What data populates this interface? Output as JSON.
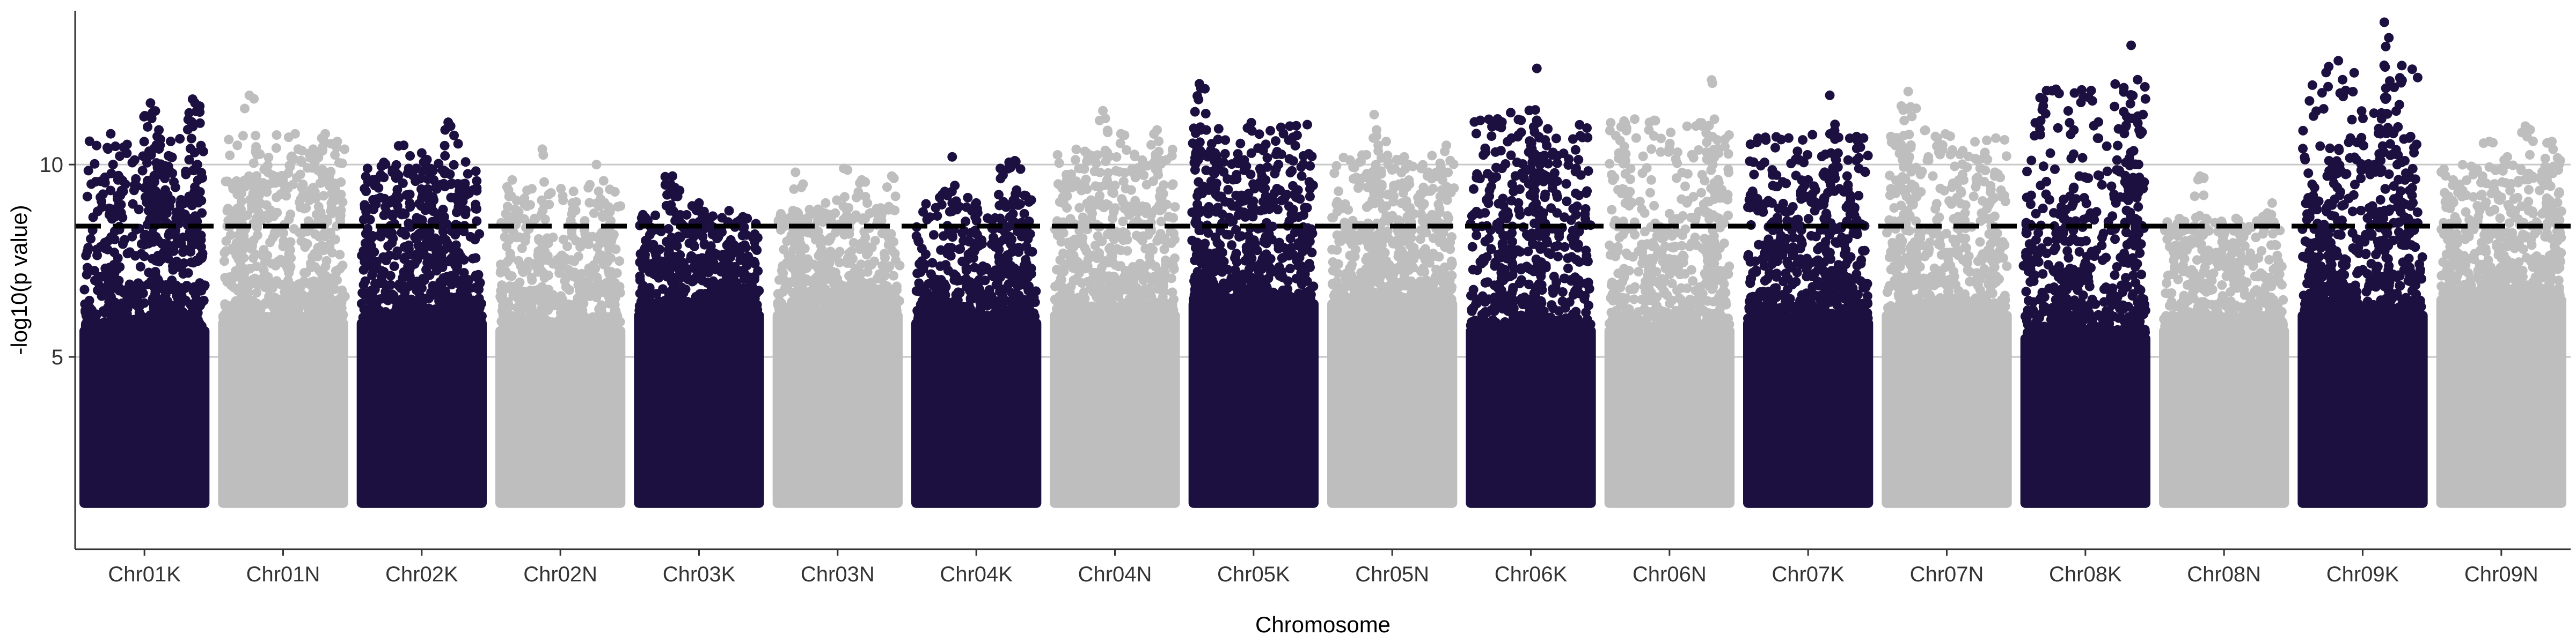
{
  "chart_data": {
    "type": "scatter",
    "title": "",
    "xlabel": "Chromosome",
    "ylabel": "-log10(p value)",
    "ylim": [
      0,
      14
    ],
    "yticks": [
      5,
      10
    ],
    "grid": "horizontal major gridlines only",
    "legend": "none",
    "threshold": {
      "value": 8.4,
      "style": "dashed",
      "color": "#000000"
    },
    "colors": {
      "K": "#1c1040",
      "N": "#bebebe",
      "grid": "#c8c8c8",
      "axis": "#333333"
    },
    "chromosomes": [
      {
        "name": "Chr01K",
        "group": "K",
        "max": 11.7,
        "dense_top": 5.8,
        "peaks": [
          [
            0.22,
            10.8
          ],
          [
            0.28,
            9.6
          ],
          [
            0.55,
            11.6
          ],
          [
            0.56,
            11.2
          ],
          [
            0.62,
            10.9
          ],
          [
            0.72,
            10.2
          ],
          [
            0.9,
            11.7
          ],
          [
            0.92,
            11.6
          ],
          [
            0.94,
            10.0
          ],
          [
            0.6,
            9.2
          ],
          [
            0.8,
            9.0
          ]
        ]
      },
      {
        "name": "Chr01N",
        "group": "N",
        "max": 11.8,
        "dense_top": 6.0,
        "peaks": [
          [
            0.12,
            10.5
          ],
          [
            0.22,
            11.8
          ],
          [
            0.6,
            10.8
          ],
          [
            0.75,
            10.4
          ],
          [
            0.85,
            10.8
          ],
          [
            0.95,
            10.6
          ],
          [
            0.5,
            9.6
          ],
          [
            0.3,
            9.4
          ]
        ]
      },
      {
        "name": "Chr02K",
        "group": "K",
        "max": 11.1,
        "dense_top": 6.0,
        "peaks": [
          [
            0.05,
            9.9
          ],
          [
            0.35,
            10.5
          ],
          [
            0.5,
            10.3
          ],
          [
            0.72,
            11.1
          ],
          [
            0.74,
            11.0
          ],
          [
            0.6,
            9.6
          ],
          [
            0.8,
            9.5
          ],
          [
            0.4,
            9.0
          ]
        ]
      },
      {
        "name": "Chr02N",
        "group": "N",
        "max": 10.4,
        "dense_top": 5.8,
        "peaks": [
          [
            0.1,
            9.6
          ],
          [
            0.35,
            10.4
          ],
          [
            0.8,
            10.0
          ],
          [
            0.6,
            9.0
          ],
          [
            0.9,
            8.9
          ]
        ]
      },
      {
        "name": "Chr03K",
        "group": "K",
        "max": 9.7,
        "dense_top": 6.2,
        "peaks": [
          [
            0.28,
            9.7
          ],
          [
            0.3,
            9.4
          ],
          [
            0.5,
            9.0
          ],
          [
            0.75,
            8.8
          ],
          [
            0.9,
            8.6
          ]
        ]
      },
      {
        "name": "Chr03N",
        "group": "N",
        "max": 9.9,
        "dense_top": 6.2,
        "peaks": [
          [
            0.15,
            9.8
          ],
          [
            0.55,
            9.9
          ],
          [
            0.7,
            9.6
          ],
          [
            0.95,
            9.7
          ],
          [
            0.4,
            9.0
          ]
        ]
      },
      {
        "name": "Chr04K",
        "group": "K",
        "max": 10.3,
        "dense_top": 6.0,
        "peaks": [
          [
            0.3,
            10.2
          ],
          [
            0.7,
            9.9
          ],
          [
            0.82,
            10.1
          ],
          [
            0.5,
            9.0
          ],
          [
            0.9,
            9.2
          ]
        ]
      },
      {
        "name": "Chr04N",
        "group": "N",
        "max": 11.4,
        "dense_top": 6.2,
        "peaks": [
          [
            0.1,
            9.6
          ],
          [
            0.4,
            11.4
          ],
          [
            0.42,
            11.2
          ],
          [
            0.55,
            10.8
          ],
          [
            0.85,
            10.9
          ],
          [
            0.7,
            9.8
          ],
          [
            0.2,
            9.9
          ]
        ]
      },
      {
        "name": "Chr05K",
        "group": "K",
        "max": 12.1,
        "dense_top": 6.5,
        "peaks": [
          [
            0.05,
            12.1
          ],
          [
            0.06,
            10.9
          ],
          [
            0.18,
            10.3
          ],
          [
            0.2,
            10.1
          ],
          [
            0.6,
            9.6
          ],
          [
            0.9,
            9.7
          ],
          [
            0.4,
            9.2
          ]
        ]
      },
      {
        "name": "Chr05N",
        "group": "N",
        "max": 11.3,
        "dense_top": 6.5,
        "peaks": [
          [
            0.35,
            11.3
          ],
          [
            0.37,
            10.9
          ],
          [
            0.45,
            10.6
          ],
          [
            0.6,
            10.2
          ],
          [
            0.95,
            10.5
          ],
          [
            0.8,
            9.8
          ]
        ]
      },
      {
        "name": "Chr06K",
        "group": "K",
        "max": 12.5,
        "dense_top": 5.8,
        "peaks": [
          [
            0.55,
            12.5
          ],
          [
            0.56,
            11.1
          ],
          [
            0.57,
            10.7
          ],
          [
            0.58,
            10.2
          ],
          [
            0.9,
            9.2
          ],
          [
            0.3,
            8.6
          ]
        ]
      },
      {
        "name": "Chr06N",
        "group": "N",
        "max": 12.2,
        "dense_top": 5.8,
        "peaks": [
          [
            0.08,
            10.3
          ],
          [
            0.85,
            12.2
          ],
          [
            0.86,
            10.0
          ],
          [
            0.6,
            9.1
          ],
          [
            0.4,
            8.4
          ]
        ]
      },
      {
        "name": "Chr07K",
        "group": "K",
        "max": 11.8,
        "dense_top": 6.0,
        "peaks": [
          [
            0.2,
            9.0
          ],
          [
            0.5,
            9.6
          ],
          [
            0.68,
            11.8
          ],
          [
            0.69,
            10.3
          ],
          [
            0.85,
            9.2
          ],
          [
            0.35,
            8.8
          ]
        ]
      },
      {
        "name": "Chr07N",
        "group": "N",
        "max": 11.9,
        "dense_top": 6.2,
        "peaks": [
          [
            0.1,
            10.6
          ],
          [
            0.18,
            11.9
          ],
          [
            0.2,
            11.5
          ],
          [
            0.19,
            10.2
          ],
          [
            0.6,
            9.6
          ],
          [
            0.9,
            9.8
          ]
        ]
      },
      {
        "name": "Chr08K",
        "group": "K",
        "max": 13.1,
        "dense_top": 5.6,
        "peaks": [
          [
            0.05,
            9.2
          ],
          [
            0.45,
            9.7
          ],
          [
            0.88,
            13.1
          ],
          [
            0.89,
            11.2
          ],
          [
            0.9,
            9.5
          ],
          [
            0.3,
            8.9
          ]
        ]
      },
      {
        "name": "Chr08N",
        "group": "N",
        "max": 9.7,
        "dense_top": 5.8,
        "peaks": [
          [
            0.3,
            9.7
          ],
          [
            0.6,
            8.6
          ],
          [
            0.9,
            9.0
          ]
        ]
      },
      {
        "name": "Chr09K",
        "group": "K",
        "max": 13.7,
        "dense_top": 6.2,
        "peaks": [
          [
            0.1,
            9.4
          ],
          [
            0.22,
            10.1
          ],
          [
            0.3,
            10.0
          ],
          [
            0.6,
            10.0
          ],
          [
            0.68,
            13.7
          ],
          [
            0.69,
            11.7
          ],
          [
            0.85,
            10.1
          ]
        ]
      },
      {
        "name": "Chr09N",
        "group": "N",
        "max": 11.0,
        "dense_top": 6.6,
        "peaks": [
          [
            0.1,
            9.6
          ],
          [
            0.4,
            10.6
          ],
          [
            0.55,
            10.2
          ],
          [
            0.7,
            11.0
          ],
          [
            0.92,
            10.6
          ],
          [
            0.93,
            10.4
          ]
        ]
      }
    ],
    "point_y_min": 1.2
  }
}
